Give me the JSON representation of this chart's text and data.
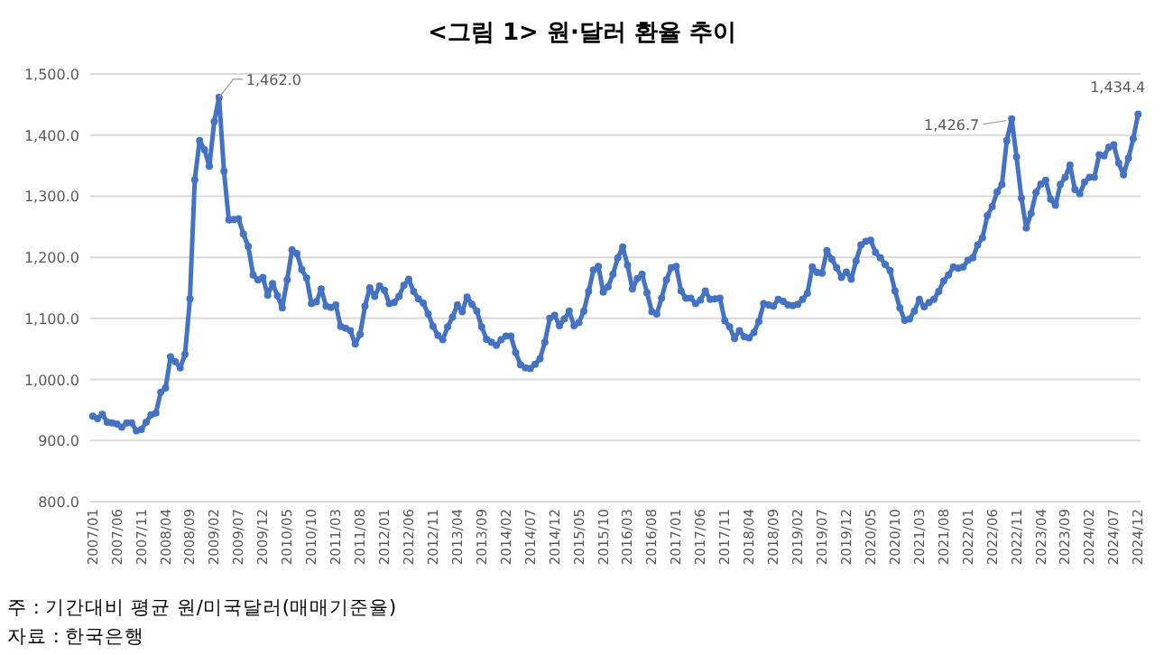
{
  "chart_data": {
    "type": "line",
    "title": "<그림 1> 원·달러 환율 추이",
    "categories": [
      "2007/01",
      null,
      null,
      null,
      null,
      "2007/06",
      null,
      null,
      null,
      null,
      "2007/11",
      null,
      null,
      null,
      null,
      "2008/04",
      null,
      null,
      null,
      null,
      "2008/09",
      null,
      null,
      null,
      null,
      "2009/02",
      null,
      null,
      null,
      null,
      "2009/07",
      null,
      null,
      null,
      null,
      "2009/12",
      null,
      null,
      null,
      null,
      "2010/05",
      null,
      null,
      null,
      null,
      "2010/10",
      null,
      null,
      null,
      null,
      "2011/03",
      null,
      null,
      null,
      null,
      "2011/08",
      null,
      null,
      null,
      null,
      "2012/01",
      null,
      null,
      null,
      null,
      "2012/06",
      null,
      null,
      null,
      null,
      "2012/11",
      null,
      null,
      null,
      null,
      "2013/04",
      null,
      null,
      null,
      null,
      "2013/09",
      null,
      null,
      null,
      null,
      "2014/02",
      null,
      null,
      null,
      null,
      "2014/07",
      null,
      null,
      null,
      null,
      "2014/12",
      null,
      null,
      null,
      null,
      "2015/05",
      null,
      null,
      null,
      null,
      "2015/10",
      null,
      null,
      null,
      null,
      "2016/03",
      null,
      null,
      null,
      null,
      "2016/08",
      null,
      null,
      null,
      null,
      "2017/01",
      null,
      null,
      null,
      null,
      "2017/06",
      null,
      null,
      null,
      null,
      "2017/11",
      null,
      null,
      null,
      null,
      "2018/04",
      null,
      null,
      null,
      null,
      "2018/09",
      null,
      null,
      null,
      null,
      "2019/02",
      null,
      null,
      null,
      null,
      "2019/07",
      null,
      null,
      null,
      null,
      "2019/12",
      null,
      null,
      null,
      null,
      "2020/05",
      null,
      null,
      null,
      null,
      "2020/10",
      null,
      null,
      null,
      null,
      "2021/03",
      null,
      null,
      null,
      null,
      "2021/08",
      null,
      null,
      null,
      null,
      "2022/01",
      null,
      null,
      null,
      null,
      "2022/06",
      null,
      null,
      null,
      null,
      "2022/11",
      null,
      null,
      null,
      null,
      "2023/04",
      null,
      null,
      null,
      null,
      "2023/09",
      null,
      null,
      null,
      null,
      "2024/02",
      null,
      null,
      null,
      null,
      "2024/07",
      null,
      null,
      null,
      null,
      "2024/12"
    ],
    "series": [
      {
        "color": "#4472c4",
        "values": [
          940,
          936,
          943,
          930,
          929,
          927,
          922,
          929,
          929,
          916,
          918,
          930,
          942,
          945,
          979,
          986,
          1037,
          1029,
          1019,
          1041,
          1132,
          1327,
          1391,
          1376,
          1349,
          1422,
          1462.0,
          1341,
          1261,
          1262,
          1263,
          1238,
          1218,
          1171,
          1163,
          1167,
          1138,
          1157,
          1137,
          1117,
          1163,
          1212,
          1206,
          1180,
          1166,
          1124,
          1127,
          1148,
          1120,
          1118,
          1122,
          1087,
          1084,
          1080,
          1058,
          1074,
          1120,
          1150,
          1136,
          1153,
          1146,
          1124,
          1126,
          1136,
          1154,
          1164,
          1144,
          1132,
          1125,
          1107,
          1087,
          1072,
          1065,
          1086,
          1102,
          1122,
          1111,
          1135,
          1123,
          1112,
          1086,
          1066,
          1061,
          1056,
          1065,
          1071,
          1071,
          1044,
          1024,
          1019,
          1018,
          1025,
          1034,
          1061,
          1100,
          1105,
          1088,
          1099,
          1112,
          1088,
          1093,
          1112,
          1144,
          1179,
          1185,
          1143,
          1152,
          1172,
          1199,
          1217,
          1187,
          1148,
          1165,
          1172,
          1142,
          1111,
          1107,
          1133,
          1163,
          1183,
          1185,
          1145,
          1133,
          1133,
          1124,
          1130,
          1145,
          1131,
          1132,
          1133,
          1096,
          1086,
          1067,
          1080,
          1070,
          1068,
          1077,
          1095,
          1124,
          1122,
          1120,
          1131,
          1128,
          1122,
          1121,
          1123,
          1131,
          1141,
          1184,
          1175,
          1174,
          1211,
          1197,
          1183,
          1167,
          1176,
          1164,
          1194,
          1220,
          1226,
          1228,
          1208,
          1199,
          1188,
          1178,
          1145,
          1117,
          1097,
          1099,
          1112,
          1131,
          1119,
          1126,
          1131,
          1144,
          1161,
          1171,
          1184,
          1182,
          1184,
          1195,
          1199,
          1220,
          1232,
          1268,
          1283,
          1307,
          1319,
          1391,
          1426.7,
          1364,
          1297,
          1248,
          1272,
          1306,
          1320,
          1326,
          1295,
          1285,
          1319,
          1331,
          1351,
          1311,
          1304,
          1323,
          1331,
          1331,
          1368,
          1366,
          1380,
          1384,
          1354,
          1335,
          1362,
          1394,
          1434.4
        ],
        "value_labels": [
          null,
          null,
          null,
          null,
          null,
          null,
          null,
          null,
          null,
          null,
          null,
          null,
          null,
          null,
          null,
          null,
          null,
          null,
          null,
          null,
          null,
          null,
          null,
          null,
          null,
          null,
          "1,462.0",
          null,
          null,
          null,
          null,
          null,
          null,
          null,
          null,
          null,
          null,
          null,
          null,
          null,
          null,
          null,
          null,
          null,
          null,
          null,
          null,
          null,
          null,
          null,
          null,
          null,
          null,
          null,
          null,
          null,
          null,
          null,
          null,
          null,
          null,
          null,
          null,
          null,
          null,
          null,
          null,
          null,
          null,
          null,
          null,
          null,
          null,
          null,
          null,
          null,
          null,
          null,
          null,
          null,
          null,
          null,
          null,
          null,
          null,
          null,
          null,
          null,
          null,
          null,
          null,
          null,
          null,
          null,
          null,
          null,
          null,
          null,
          null,
          null,
          null,
          null,
          null,
          null,
          null,
          null,
          null,
          null,
          null,
          null,
          null,
          null,
          null,
          null,
          null,
          null,
          null,
          null,
          null,
          null,
          null,
          null,
          null,
          null,
          null,
          null,
          null,
          null,
          null,
          null,
          null,
          null,
          null,
          null,
          null,
          null,
          null,
          null,
          null,
          null,
          null,
          null,
          null,
          null,
          null,
          null,
          null,
          null,
          null,
          null,
          null,
          null,
          null,
          null,
          null,
          null,
          null,
          null,
          null,
          null,
          null,
          null,
          null,
          null,
          null,
          null,
          null,
          null,
          null,
          null,
          null,
          null,
          null,
          null,
          null,
          null,
          null,
          null,
          null,
          null,
          null,
          null,
          null,
          null,
          null,
          null,
          null,
          null,
          null,
          "1,426.7",
          null,
          null,
          null,
          null,
          null,
          null,
          null,
          null,
          null,
          null,
          null,
          null,
          null,
          null,
          null,
          null,
          null,
          null,
          null,
          null,
          null,
          null,
          null,
          null,
          null,
          "1,434.4"
        ]
      }
    ],
    "ylim": [
      800,
      1500
    ],
    "yticks": [
      {
        "value": 800,
        "label": "800.0"
      },
      {
        "value": 900,
        "label": "900.0"
      },
      {
        "value": 1000,
        "label": "1,000.0"
      },
      {
        "value": 1100,
        "label": "1,100.0"
      },
      {
        "value": 1200,
        "label": "1,200.0"
      },
      {
        "value": 1300,
        "label": "1,300.0"
      },
      {
        "value": 1400,
        "label": "1,400.0"
      },
      {
        "value": 1500,
        "label": "1,500.0"
      }
    ],
    "grid": "y",
    "marker": "circle",
    "line_style": "solid",
    "annotations": [
      "주 : 기간대비 평균 원/미국달러(매매기준율)",
      "자료 : 한국은행"
    ]
  }
}
